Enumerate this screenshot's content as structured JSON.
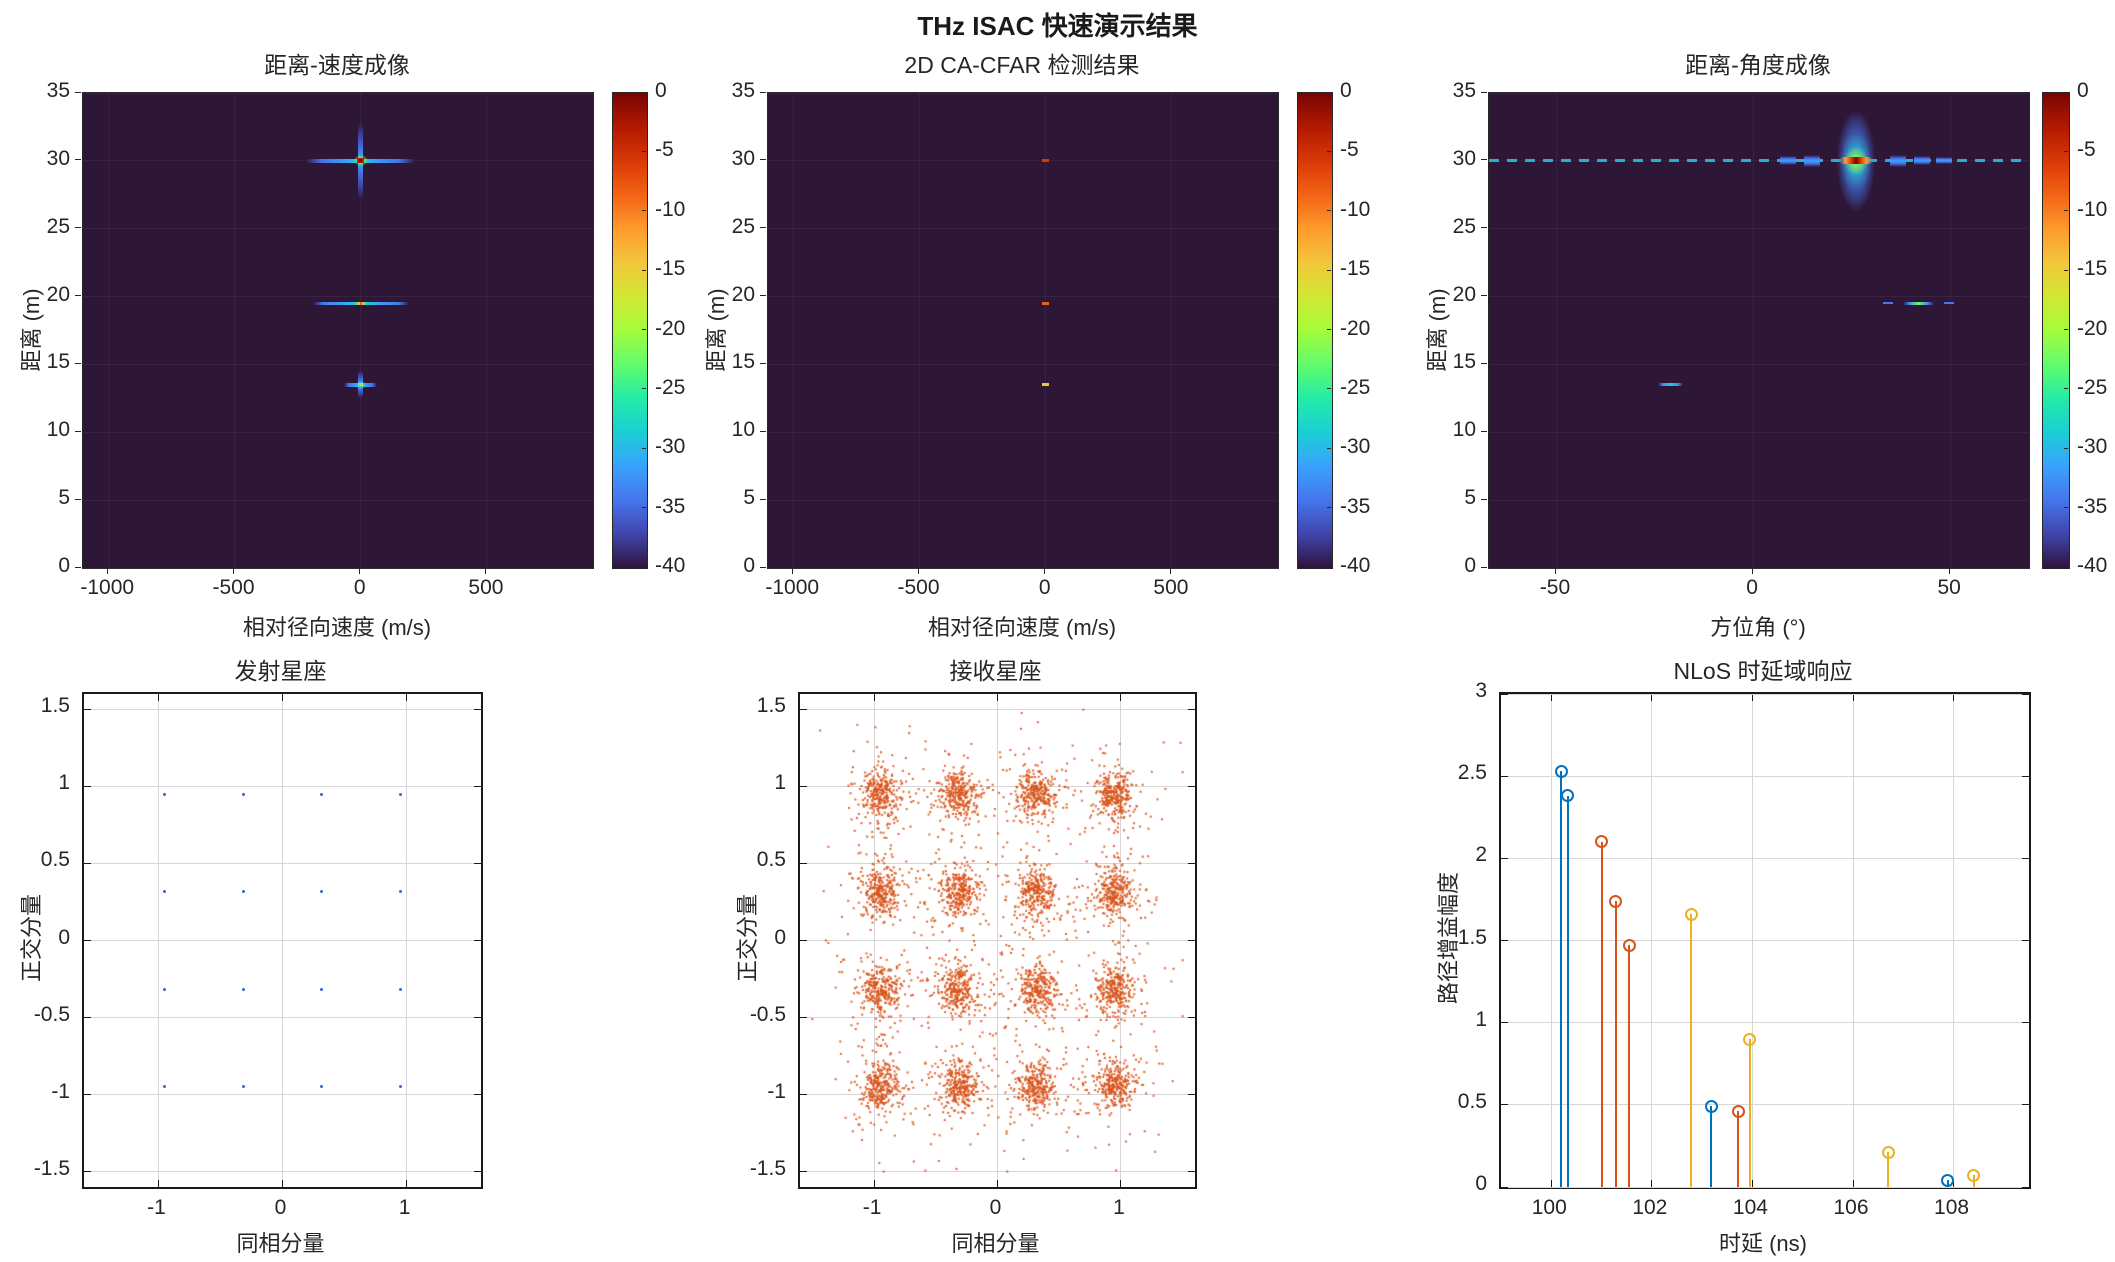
{
  "figure": {
    "title": "THz ISAC 快速演示结果"
  },
  "colors": {
    "text": "#262626",
    "heatmap_background": "#2e1637",
    "grid_light": "#d6d6d6",
    "grid_on_dark": "rgba(255,255,255,0.05)",
    "matlab_blue": "#0072BD",
    "matlab_orange": "#D95319",
    "matlab_yellow": "#EDB120",
    "tx_marker": "#3A66DB",
    "rx_marker": "#D95319",
    "turbo_stops_high_to_low": [
      "#7a0403",
      "#b11901",
      "#d93806",
      "#f36315",
      "#fe9b2d",
      "#f3c63a",
      "#d1e834",
      "#a4fc3b",
      "#61fc6c",
      "#24eca6",
      "#1bcfd4",
      "#39a2fc",
      "#4675ed",
      "#4145ab",
      "#30123b"
    ]
  },
  "colorbar": {
    "ticks": [
      0,
      -5,
      -10,
      -15,
      -20,
      -25,
      -30,
      -35,
      -40
    ]
  },
  "chart_data": [
    {
      "id": "range-velocity-map",
      "type": "heatmap",
      "title": "距离-速度成像",
      "xlabel": "相对径向速度 (m/s)",
      "ylabel": "距离 (m)",
      "xlim": [
        -1100,
        920
      ],
      "ylim": [
        0,
        35
      ],
      "xticks": [
        -1000,
        -500,
        0,
        500
      ],
      "yticks": [
        0,
        5,
        10,
        15,
        20,
        25,
        30,
        35
      ],
      "value_range_db": [
        0,
        -40
      ],
      "targets": [
        {
          "kind": "cross",
          "velocity": 0,
          "range": 30,
          "v_extent": 430,
          "r_extent": 5.6,
          "strength": "strong"
        },
        {
          "kind": "hline",
          "velocity": 0,
          "range": 19.5,
          "v_extent": 380,
          "strength": "strong"
        },
        {
          "kind": "cross",
          "velocity": 0,
          "range": 13.5,
          "v_extent": 130,
          "r_extent": 2.0,
          "strength": "weak"
        }
      ]
    },
    {
      "id": "cfar-detection-map",
      "type": "heatmap",
      "title": "2D CA-CFAR 检测结果",
      "xlabel": "相对径向速度 (m/s)",
      "ylabel": "距离 (m)",
      "xlim": [
        -1100,
        920
      ],
      "ylim": [
        0,
        35
      ],
      "xticks": [
        -1000,
        -500,
        0,
        500
      ],
      "yticks": [
        0,
        5,
        10,
        15,
        20,
        25,
        30,
        35
      ],
      "value_range_db": [
        0,
        -40
      ],
      "detections": [
        {
          "velocity": 0,
          "range": 30,
          "color": "#d93806"
        },
        {
          "velocity": 0,
          "range": 19.5,
          "color": "#e8641a"
        },
        {
          "velocity": 0,
          "range": 13.5,
          "color": "#f3c63a"
        }
      ]
    },
    {
      "id": "range-angle-map",
      "type": "heatmap",
      "title": "距离-角度成像",
      "xlabel": "方位角 (°)",
      "ylabel": "距离 (m)",
      "xlim": [
        -67,
        70
      ],
      "ylim": [
        0,
        35
      ],
      "xticks": [
        -50,
        0,
        50
      ],
      "yticks": [
        0,
        5,
        10,
        15,
        20,
        25,
        30,
        35
      ],
      "value_range_db": [
        0,
        -40
      ],
      "features": [
        {
          "kind": "dashline",
          "range": 30
        },
        {
          "kind": "blob",
          "azimuth": 26,
          "range": 30
        },
        {
          "kind": "dash",
          "azimuth": 42,
          "range": 19.5,
          "half_width_deg": 4.0,
          "center_color": "#61fc6c",
          "side_dashes": true
        },
        {
          "kind": "dash",
          "azimuth": -21,
          "range": 13.5,
          "half_width_deg": 3.2,
          "center_color": "#1bcfd4",
          "side_dashes": false
        }
      ]
    },
    {
      "id": "tx-constellation",
      "type": "scatter",
      "title": "发射星座",
      "xlabel": "同相分量",
      "ylabel": "正交分量",
      "xlim": [
        -1.6,
        1.6
      ],
      "ylim": [
        -1.6,
        1.6
      ],
      "xticks": [
        -1,
        0,
        1
      ],
      "yticks": [
        -1.5,
        -1,
        -0.5,
        0,
        0.5,
        1,
        1.5
      ],
      "levels": [
        -0.9487,
        -0.3162,
        0.3162,
        0.9487
      ],
      "marker_color": "#3A66DB"
    },
    {
      "id": "rx-constellation",
      "type": "scatter-cloud",
      "title": "接收星座",
      "xlabel": "同相分量",
      "ylabel": "正交分量",
      "xlim": [
        -1.6,
        1.6
      ],
      "ylim": [
        -1.6,
        1.6
      ],
      "xticks": [
        -1,
        0,
        1
      ],
      "yticks": [
        -1.5,
        -1,
        -0.5,
        0,
        0.5,
        1,
        1.5
      ],
      "cluster_levels": [
        -0.9487,
        -0.3162,
        0.3162,
        0.9487
      ],
      "points_per_cluster": 240,
      "core_sigma": 0.075,
      "halo_points": 80,
      "halo_sigma": 0.17,
      "stray_points": 220,
      "stray_sigma": 0.3,
      "marker_color": "#D95319",
      "seed": 42
    },
    {
      "id": "nlos-delay-response",
      "type": "stem",
      "title": "NLoS 时延域响应",
      "xlabel": "时延 (ns)",
      "ylabel": "路径增益幅度",
      "xlim": [
        99,
        109.5
      ],
      "ylim": [
        0,
        3
      ],
      "xticks": [
        100,
        102,
        104,
        106,
        108
      ],
      "yticks": [
        0,
        0.5,
        1,
        1.5,
        2,
        2.5,
        3
      ],
      "series": [
        {
          "name": "series-1",
          "color": "#0072BD",
          "points": [
            [
              100.2,
              2.53
            ],
            [
              100.33,
              2.38
            ],
            [
              103.18,
              0.49
            ],
            [
              107.88,
              0.04
            ]
          ]
        },
        {
          "name": "series-2",
          "color": "#D95319",
          "points": [
            [
              101.0,
              2.1
            ],
            [
              101.28,
              1.74
            ],
            [
              101.55,
              1.47
            ],
            [
              103.72,
              0.46
            ]
          ]
        },
        {
          "name": "series-3",
          "color": "#EDB120",
          "points": [
            [
              102.78,
              1.66
            ],
            [
              103.95,
              0.9
            ],
            [
              106.7,
              0.21
            ],
            [
              108.4,
              0.07
            ]
          ]
        }
      ]
    }
  ]
}
